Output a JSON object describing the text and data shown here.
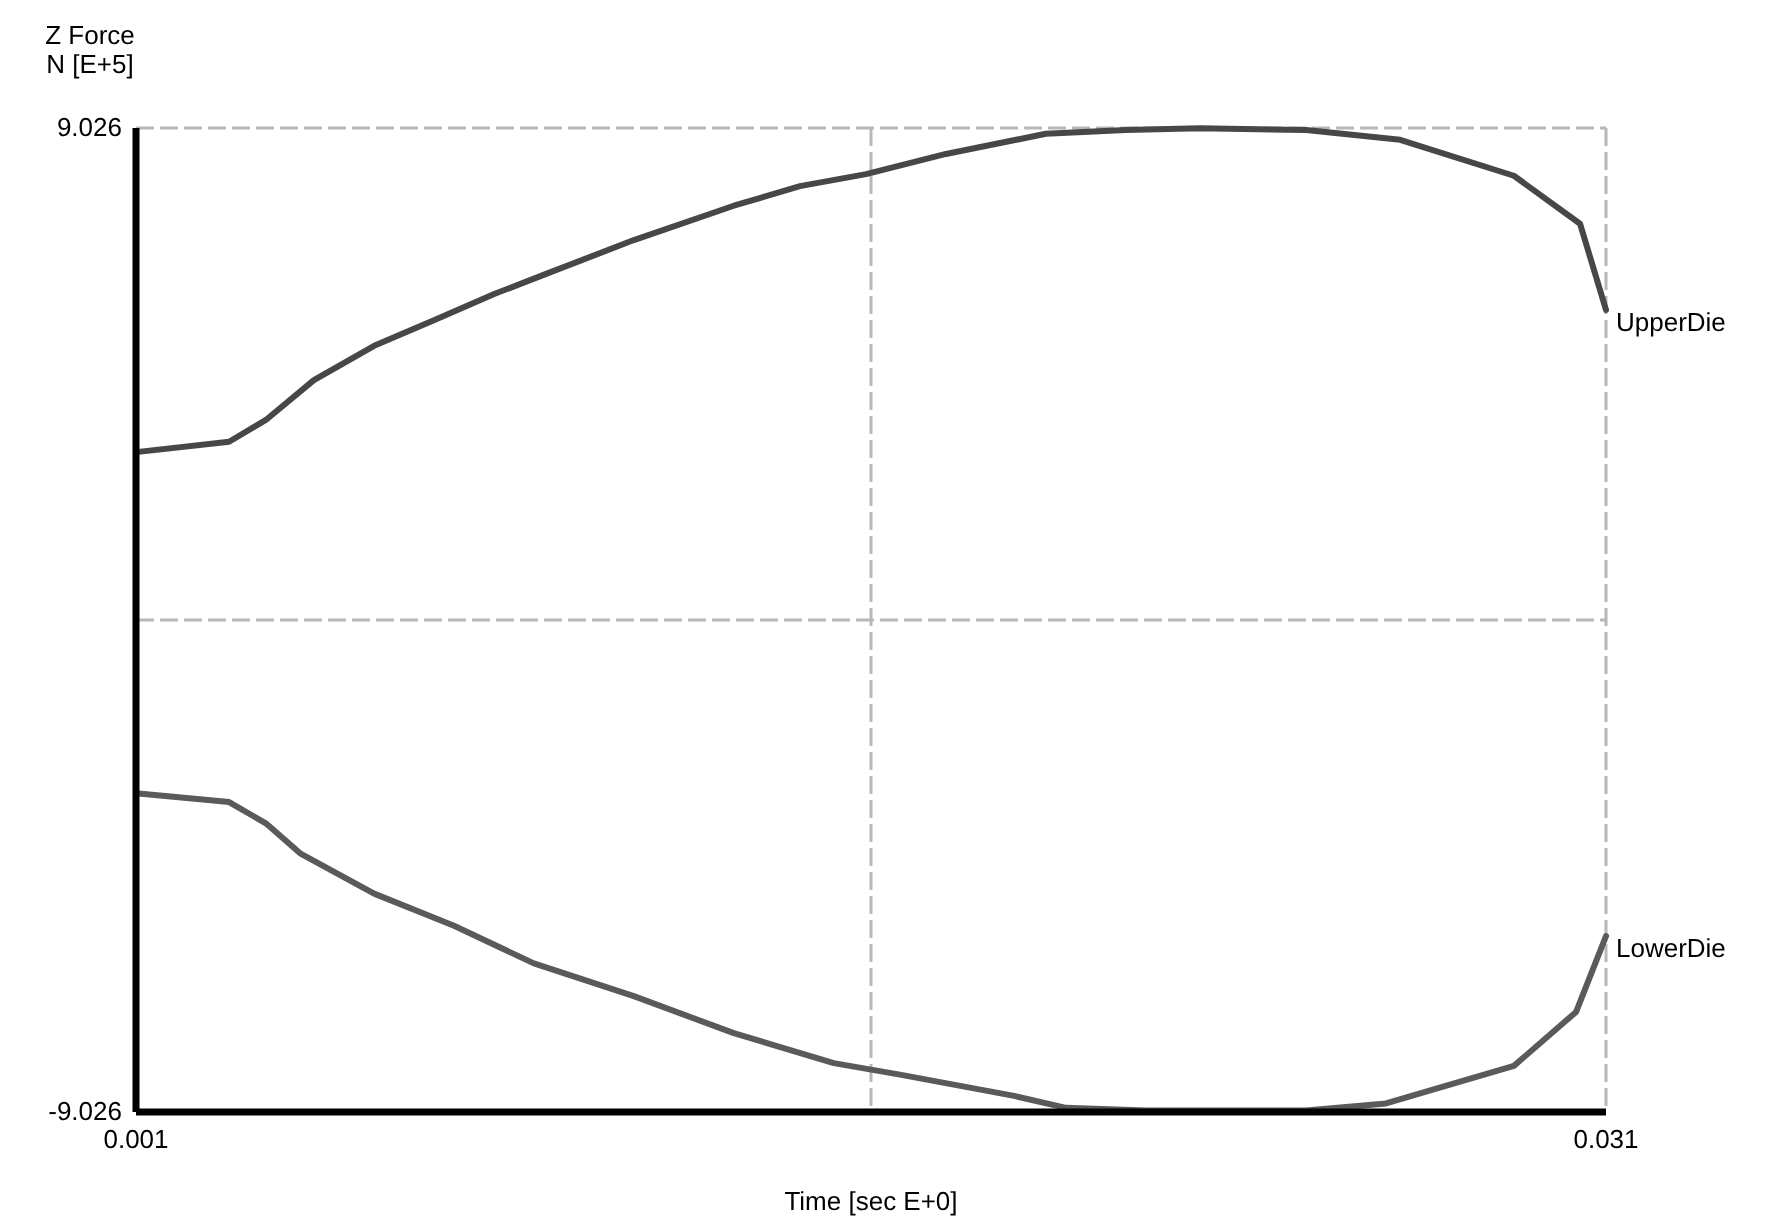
{
  "chart_data": {
    "type": "line",
    "ylabel": "Z Force\nN [E+5]",
    "xlabel": "Time [sec E+0]",
    "xlim": [
      0.001,
      0.031
    ],
    "xticks": [
      0.001,
      {
        "value": 0.016,
        "label": null
      },
      0.031
    ],
    "ylim": [
      -9.026,
      9.026
    ],
    "yticks": [
      -9.026,
      {
        "value": 0,
        "label": null
      },
      9.026
    ],
    "grid": true,
    "series": [
      {
        "name": "UpperDie",
        "color": "#474747",
        "x": [
          0.001,
          0.0029,
          0.00365,
          0.00463,
          0.00586,
          0.00708,
          0.00831,
          0.00937,
          0.01116,
          0.0132,
          0.01455,
          0.0159,
          0.01753,
          0.01957,
          0.0212,
          0.02271,
          0.02488,
          0.0268,
          0.02912,
          0.03047,
          0.031
        ],
        "values": [
          3.08,
          3.27,
          3.67,
          4.4,
          5.03,
          5.5,
          5.98,
          6.35,
          6.97,
          7.6,
          7.96,
          8.18,
          8.55,
          8.92,
          8.99,
          9.02,
          8.99,
          8.81,
          8.15,
          7.27,
          5.69
        ]
      },
      {
        "name": "LowerDie",
        "color": "#5a5a5a",
        "x": [
          0.001,
          0.0029,
          0.00365,
          0.00435,
          0.00586,
          0.00749,
          0.00912,
          0.01116,
          0.0132,
          0.01524,
          0.01659,
          0.01892,
          0.01998,
          0.02161,
          0.02488,
          0.02651,
          0.02912,
          0.03039,
          0.031
        ],
        "values": [
          -3.18,
          -3.34,
          -3.73,
          -4.28,
          -5.02,
          -5.61,
          -6.3,
          -6.9,
          -7.58,
          -8.13,
          -8.34,
          -8.73,
          -8.95,
          -9.0,
          -9.0,
          -8.87,
          -8.18,
          -7.19,
          -5.8
        ]
      }
    ]
  }
}
